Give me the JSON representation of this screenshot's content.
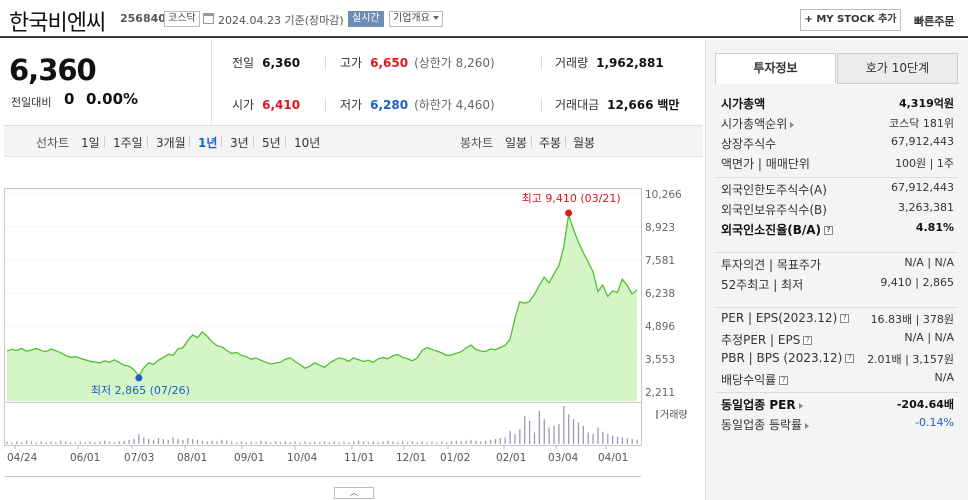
{
  "header": {
    "name": "한국비엔씨",
    "code": "256840",
    "market": "코스닥",
    "date_text": "2024.04.23  기준(장마감)",
    "live_label": "실시간",
    "company_info": "기업개요",
    "mystock_label": "+ MY STOCK 추가",
    "quick_order": "빠른주문"
  },
  "price": {
    "current": "6,360",
    "change_label": "전일대비",
    "change_value": "0",
    "change_pct": "0.00%"
  },
  "quote": {
    "prev_label": "전일",
    "prev": "6,360",
    "high_label": "고가",
    "high": "6,650",
    "upper_limit": "(상한가 8,260)",
    "volume_label": "거래량",
    "volume": "1,962,881",
    "open_label": "시가",
    "open": "6,410",
    "low_label": "저가",
    "low": "6,280",
    "lower_limit": "(하한가 4,460)",
    "amount_label": "거래대금",
    "amount": "12,666",
    "amount_unit": "백만"
  },
  "tabs": {
    "line_label": "선차트",
    "line": [
      "1일",
      "1주일",
      "3개월",
      "1년",
      "3년",
      "5년",
      "10년"
    ],
    "active": "1년",
    "candle_label": "봉차트",
    "candle": [
      "일봉",
      "주봉",
      "월봉"
    ]
  },
  "chart_data": {
    "type": "area",
    "y_ticks": [
      "10,266",
      "8,923",
      "7,581",
      "6,238",
      "4,896",
      "3,553",
      "2,211"
    ],
    "ylim": [
      2211,
      10266
    ],
    "x_ticks": [
      "04/24",
      "06/01",
      "07/03",
      "08/01",
      "09/01",
      "10/04",
      "11/01",
      "12/01",
      "01/02",
      "02/01",
      "03/04",
      "04/01"
    ],
    "high_label": "최고 9,410 (03/21)",
    "low_label": "최저 2,865 (07/26)",
    "volume_label": "거래량",
    "colors": {
      "line": "#4ec131",
      "fill": "#d6f5c6",
      "high": "#e2141c",
      "low": "#1b5fc9"
    },
    "values": [
      3880,
      3950,
      3900,
      3980,
      3870,
      3920,
      3980,
      3900,
      3850,
      3960,
      3890,
      3810,
      3700,
      3620,
      3650,
      3580,
      3520,
      3460,
      3430,
      3400,
      3480,
      3420,
      3520,
      3410,
      3300,
      3260,
      3120,
      2865,
      3180,
      3400,
      3330,
      3500,
      3620,
      3750,
      3700,
      3960,
      4010,
      4300,
      4530,
      4420,
      4660,
      4480,
      4250,
      4100,
      4050,
      3900,
      3780,
      3820,
      3700,
      3650,
      3540,
      3600,
      3500,
      3420,
      3350,
      3390,
      3420,
      3550,
      3600,
      3450,
      3330,
      3180,
      3260,
      3400,
      3300,
      3210,
      3380,
      3500,
      3600,
      3550,
      3460,
      3600,
      3520,
      3450,
      3500,
      3420,
      3560,
      3610,
      3560,
      3680,
      3740,
      3620,
      3560,
      3480,
      3600,
      3900,
      4020,
      3940,
      3880,
      3800,
      3700,
      3720,
      3780,
      3850,
      4000,
      4120,
      3940,
      3880,
      3860,
      3960,
      3930,
      4020,
      4110,
      4350,
      5200,
      5880,
      5820,
      5900,
      6180,
      6540,
      6880,
      6650,
      7020,
      7350,
      8100,
      9410,
      8820,
      8300,
      7880,
      7500,
      7100,
      6300,
      6560,
      6100,
      6320,
      6260,
      6800,
      6550,
      6200,
      6360
    ],
    "volumes": [
      3,
      2,
      3,
      2,
      4,
      3,
      2,
      3,
      2,
      3,
      2,
      4,
      3,
      2,
      2,
      3,
      2,
      3,
      2,
      3,
      4,
      3,
      2,
      3,
      4,
      5,
      6,
      12,
      8,
      6,
      5,
      7,
      6,
      5,
      8,
      6,
      5,
      7,
      6,
      5,
      4,
      3,
      4,
      3,
      5,
      4,
      3,
      2,
      3,
      2,
      3,
      2,
      4,
      3,
      2,
      3,
      2,
      3,
      2,
      3,
      2,
      3,
      2,
      3,
      2,
      3,
      2,
      3,
      2,
      3,
      2,
      3,
      4,
      3,
      2,
      3,
      2,
      3,
      4,
      3,
      2,
      3,
      2,
      3,
      2,
      3,
      2,
      3,
      2,
      3,
      2,
      3,
      4,
      3,
      4,
      5,
      4,
      3,
      4,
      5,
      6,
      7,
      8,
      16,
      12,
      18,
      34,
      28,
      14,
      40,
      30,
      20,
      22,
      24,
      46,
      36,
      30,
      26,
      22,
      14,
      12,
      20,
      15,
      12,
      10,
      9,
      8,
      7,
      6,
      5
    ]
  },
  "invest": {
    "tab_active": "투자정보",
    "tab_other": "호가 10단계",
    "s1": [
      {
        "k": "시가총액",
        "v": "4,319억원",
        "bold": true
      },
      {
        "k": "시가총액순위",
        "v": "코스닥 181위",
        "tri": true
      },
      {
        "k": "상장주식수",
        "v": "67,912,443"
      },
      {
        "k": "액면가 | 매매단위",
        "v": "100원 | 1주"
      }
    ],
    "s2": [
      {
        "k": "외국인한도주식수(A)",
        "v": "67,912,443"
      },
      {
        "k": "외국인보유주식수(B)",
        "v": "3,263,381"
      },
      {
        "k": "외국인소진율(B/A)",
        "v": "4.81%",
        "bold": true,
        "q": true
      }
    ],
    "s3": [
      {
        "k": "투자의견 | 목표주가",
        "v": "N/A | N/A"
      },
      {
        "k": "52주최고 | 최저",
        "v": "9,410 | 2,865"
      }
    ],
    "s4": [
      {
        "k": "PER | EPS(2023.12)",
        "v": "16.83배 | 378원",
        "q": true
      },
      {
        "k": "추정PER | EPS",
        "v": "N/A | N/A",
        "q": true
      },
      {
        "k": "PBR | BPS (2023.12)",
        "v": "2.01배 | 3,157원",
        "q": true
      },
      {
        "k": "배당수익률",
        "v": "N/A",
        "q": true
      }
    ],
    "s5": [
      {
        "k": "동일업종 PER",
        "v": "-204.64배",
        "bold": true,
        "tri": true
      },
      {
        "k": "동일업종 등락률",
        "v": "-0.14%",
        "tri": true,
        "blue": true
      }
    ]
  }
}
